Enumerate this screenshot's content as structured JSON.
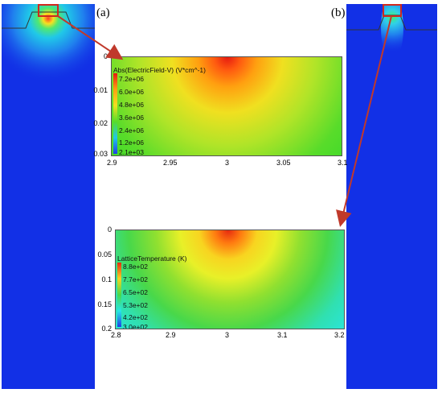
{
  "panels": {
    "a_label": "(a)",
    "b_label": "(b)"
  },
  "colors": {
    "device_blue": "#1230e6",
    "arrow": "#c0392b"
  },
  "plot_top": {
    "title": "Abs(ElectricField-V) (V*cm^-1)",
    "legend_values": [
      "7.2e+06",
      "6.0e+06",
      "4.8e+06",
      "3.6e+06",
      "2.4e+06",
      "1.2e+06",
      "2.1e+03"
    ],
    "x_ticks": [
      "2.9",
      "2.95",
      "3",
      "3.05",
      "3.1"
    ],
    "y_ticks": [
      "0",
      "0.01",
      "0.02",
      "0.03"
    ]
  },
  "plot_bottom": {
    "title": "LatticeTemperature (K)",
    "legend_values": [
      "8.8e+02",
      "7.7e+02",
      "6.5e+02",
      "5.3e+02",
      "4.2e+02",
      "3.0e+02"
    ],
    "x_ticks": [
      "2.8",
      "2.9",
      "3",
      "3.1",
      "3.2"
    ],
    "y_ticks": [
      "0",
      "0.05",
      "0.1",
      "0.15",
      "0.2"
    ]
  }
}
